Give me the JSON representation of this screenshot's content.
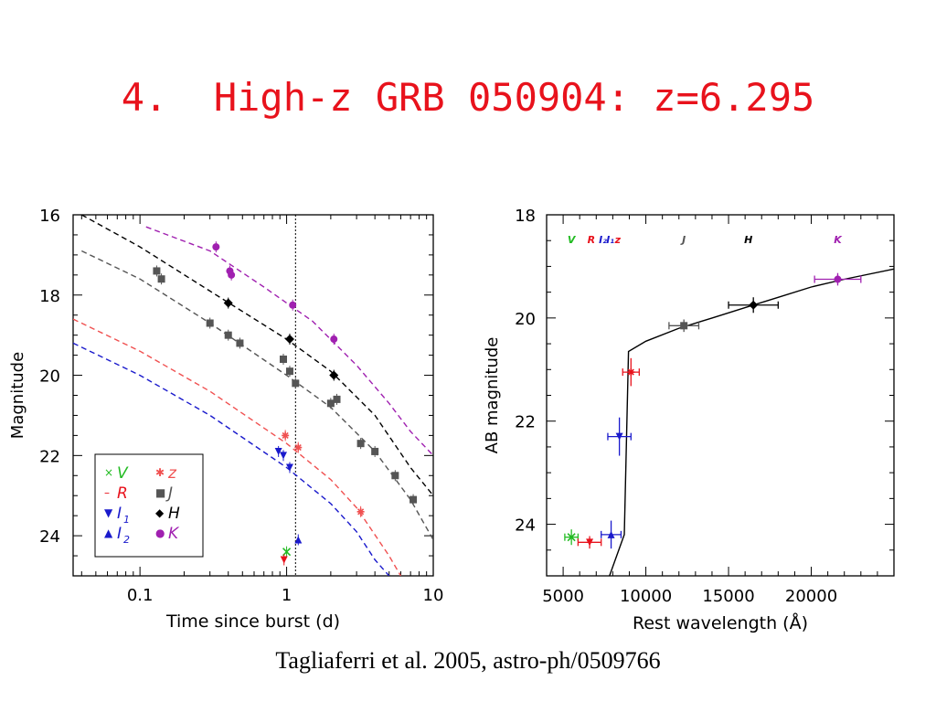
{
  "slide": {
    "title": "4.  High-z GRB 050904: z=6.295",
    "caption": "Tagliaferri et al. 2005, astro-ph/0509766"
  },
  "chart_data": [
    {
      "type": "scatter",
      "xlabel": "Time since burst (d)",
      "ylabel": "Magnitude",
      "xscale": "log",
      "xlim": [
        0.035,
        10
      ],
      "ylim": [
        25,
        16
      ],
      "y_inverted": true,
      "xticks": [
        0.1,
        1,
        10
      ],
      "xtick_labels": [
        "0.1",
        "1",
        "10"
      ],
      "yticks": [
        16,
        18,
        20,
        22,
        24
      ],
      "ytick_labels": [
        "16",
        "18",
        "20",
        "22",
        "24"
      ],
      "vline_x": 1.15,
      "legend_position": "bottom-left",
      "legend": [
        {
          "label": "V",
          "sub": "",
          "marker": "×",
          "color": "#22bb22"
        },
        {
          "label": "R",
          "sub": "",
          "marker": "–",
          "color": "#e8121c"
        },
        {
          "label": "I",
          "sub": "1",
          "marker": "▼",
          "color": "#1a1acc"
        },
        {
          "label": "I",
          "sub": "2",
          "marker": "▲",
          "color": "#1a1acc"
        },
        {
          "label": "z",
          "sub": "",
          "marker": "✱",
          "color": "#f05050"
        },
        {
          "label": "J",
          "sub": "",
          "marker": "■",
          "color": "#555555"
        },
        {
          "label": "H",
          "sub": "",
          "marker": "◆",
          "color": "#000000"
        },
        {
          "label": "K",
          "sub": "",
          "marker": "●",
          "color": "#a020b0"
        }
      ],
      "series": [
        {
          "band": "K",
          "color": "#a020b0",
          "marker": "circle",
          "points": [
            [
              0.33,
              16.8
            ],
            [
              0.41,
              17.4
            ],
            [
              0.42,
              17.5
            ],
            [
              1.1,
              18.25
            ],
            [
              2.1,
              19.1
            ]
          ],
          "model": [
            [
              0.11,
              16.3
            ],
            [
              0.3,
              16.9
            ],
            [
              0.7,
              17.8
            ],
            [
              1.5,
              18.65
            ],
            [
              3,
              19.75
            ],
            [
              5,
              20.7
            ],
            [
              7,
              21.4
            ],
            [
              10,
              22.0
            ]
          ]
        },
        {
          "band": "H",
          "color": "#000000",
          "marker": "diamond",
          "points": [
            [
              0.4,
              18.2
            ],
            [
              1.05,
              19.1
            ],
            [
              2.1,
              20.0
            ]
          ],
          "model": [
            [
              0.04,
              16.0
            ],
            [
              0.1,
              16.8
            ],
            [
              0.3,
              17.9
            ],
            [
              1,
              19.1
            ],
            [
              2,
              19.9
            ],
            [
              4,
              21.0
            ],
            [
              7,
              22.3
            ],
            [
              10,
              23.0
            ]
          ]
        },
        {
          "band": "J",
          "color": "#555555",
          "marker": "square",
          "points": [
            [
              0.13,
              17.4
            ],
            [
              0.14,
              17.6
            ],
            [
              0.3,
              18.7
            ],
            [
              0.4,
              19.0
            ],
            [
              0.48,
              19.2
            ],
            [
              0.95,
              19.6
            ],
            [
              1.05,
              19.9
            ],
            [
              1.15,
              20.2
            ],
            [
              2.0,
              20.7
            ],
            [
              2.2,
              20.6
            ],
            [
              3.2,
              21.7
            ],
            [
              4.0,
              21.9
            ],
            [
              5.5,
              22.5
            ],
            [
              7.3,
              23.1
            ]
          ],
          "model": [
            [
              0.04,
              16.9
            ],
            [
              0.1,
              17.6
            ],
            [
              0.3,
              18.7
            ],
            [
              1,
              20.0
            ],
            [
              2,
              20.8
            ],
            [
              4,
              21.9
            ],
            [
              7,
              23.1
            ],
            [
              10,
              24.1
            ]
          ]
        },
        {
          "band": "z",
          "color": "#f05050",
          "marker": "star",
          "points": [
            [
              0.98,
              21.5
            ],
            [
              1.2,
              21.8
            ],
            [
              3.2,
              23.4
            ]
          ],
          "model": [
            [
              0.035,
              18.6
            ],
            [
              0.1,
              19.4
            ],
            [
              0.3,
              20.4
            ],
            [
              1,
              21.7
            ],
            [
              2,
              22.6
            ],
            [
              3,
              23.3
            ],
            [
              5,
              24.5
            ],
            [
              6,
              25.0
            ]
          ]
        },
        {
          "band": "I1",
          "color": "#1a1acc",
          "marker": "tri-down",
          "points": [
            [
              0.88,
              21.9
            ],
            [
              0.95,
              22.0
            ],
            [
              1.05,
              22.3
            ]
          ],
          "model": [
            [
              0.035,
              19.2
            ],
            [
              0.1,
              20.0
            ],
            [
              0.3,
              21.0
            ],
            [
              1,
              22.3
            ],
            [
              2,
              23.2
            ],
            [
              3,
              23.9
            ],
            [
              4,
              24.6
            ],
            [
              5,
              25.0
            ]
          ]
        },
        {
          "band": "I2",
          "color": "#1a1acc",
          "marker": "tri-up",
          "points": [
            [
              1.2,
              24.1
            ]
          ],
          "model": []
        },
        {
          "band": "V",
          "color": "#22bb22",
          "marker": "cross",
          "points": [
            [
              1.0,
              24.4
            ]
          ],
          "model": []
        },
        {
          "band": "R",
          "color": "#e8121c",
          "marker": "tri-down",
          "points": [
            [
              0.96,
              24.6
            ]
          ],
          "model": []
        }
      ]
    },
    {
      "type": "scatter",
      "xlabel": "Rest wavelength (Å)",
      "ylabel": "AB magnitude",
      "xlim": [
        4000,
        25000
      ],
      "ylim": [
        25,
        18
      ],
      "y_inverted": true,
      "xticks": [
        5000,
        10000,
        15000,
        20000
      ],
      "xtick_labels": [
        "5000",
        "10000",
        "15000",
        "20000"
      ],
      "yticks": [
        18,
        20,
        22,
        24
      ],
      "ytick_labels": [
        "18",
        "20",
        "22",
        "24"
      ],
      "band_labels": [
        {
          "text": "V",
          "x": 5500,
          "color": "#22bb22"
        },
        {
          "text": "R",
          "x": 6700,
          "color": "#e8121c"
        },
        {
          "text": "I₂",
          "x": 7400,
          "color": "#1a1acc"
        },
        {
          "text": "I₁",
          "x": 7850,
          "color": "#1a1acc"
        },
        {
          "text": "z",
          "x": 8300,
          "color": "#e8121c"
        },
        {
          "text": "J",
          "x": 12300,
          "color": "#555555"
        },
        {
          "text": "H",
          "x": 16200,
          "color": "#000000"
        },
        {
          "text": "K",
          "x": 21600,
          "color": "#a020b0"
        }
      ],
      "band_label_y": 18.55,
      "points": [
        {
          "band": "V",
          "x": 5500,
          "y": 24.25,
          "xerr": 400,
          "yerr": 0.08,
          "color": "#22bb22",
          "marker": "cross"
        },
        {
          "band": "R",
          "x": 6600,
          "y": 24.35,
          "xerr": 700,
          "yerr": 0.05,
          "color": "#e8121c",
          "marker": "tri-down"
        },
        {
          "band": "I2",
          "x": 7900,
          "y": 24.2,
          "xerr": 600,
          "yerr": 0.2,
          "color": "#1a1acc",
          "marker": "tri-up"
        },
        {
          "band": "I1",
          "x": 8400,
          "y": 22.3,
          "xerr": 700,
          "yerr": 0.3,
          "color": "#1a1acc",
          "marker": "tri-down"
        },
        {
          "band": "z",
          "x": 9100,
          "y": 21.05,
          "xerr": 500,
          "yerr": 0.2,
          "color": "#e8121c",
          "marker": "star"
        },
        {
          "band": "J",
          "x": 12300,
          "y": 20.15,
          "xerr": 900,
          "yerr": 0.05,
          "color": "#555555",
          "marker": "square"
        },
        {
          "band": "H",
          "x": 16500,
          "y": 19.75,
          "xerr": 1500,
          "yerr": 0.08,
          "color": "#000000",
          "marker": "diamond"
        },
        {
          "band": "K",
          "x": 21600,
          "y": 19.25,
          "xerr": 1400,
          "yerr": 0.05,
          "color": "#a020b0",
          "marker": "circle"
        }
      ],
      "model": [
        [
          7800,
          25
        ],
        [
          8700,
          24.2
        ],
        [
          8950,
          20.65
        ],
        [
          10000,
          20.45
        ],
        [
          12000,
          20.2
        ],
        [
          14000,
          20.0
        ],
        [
          16000,
          19.8
        ],
        [
          18000,
          19.6
        ],
        [
          20000,
          19.4
        ],
        [
          22000,
          19.25
        ],
        [
          25000,
          19.05
        ]
      ]
    }
  ]
}
